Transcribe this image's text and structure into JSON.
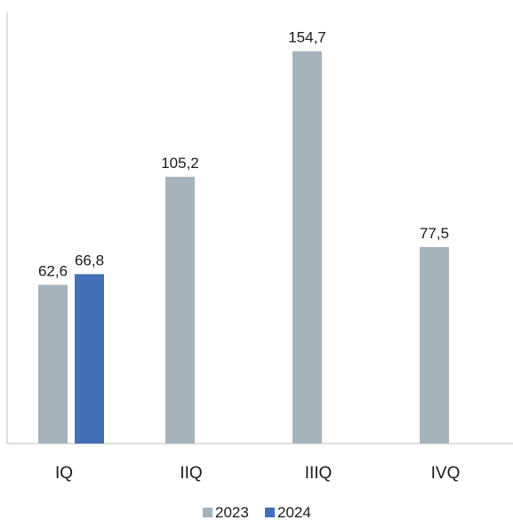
{
  "chart_data": {
    "type": "bar",
    "categories": [
      "IQ",
      "IIQ",
      "IIIQ",
      "IVQ"
    ],
    "series": [
      {
        "name": "2023",
        "color": "#a5b4bc",
        "values": [
          62.6,
          105.2,
          154.7,
          77.5
        ],
        "labels": [
          "62,6",
          "105,2",
          "154,7",
          "77,5"
        ]
      },
      {
        "name": "2024",
        "color": "#4470b8",
        "values": [
          66.8,
          null,
          null,
          null
        ],
        "labels": [
          "66,8",
          null,
          null,
          null
        ]
      }
    ],
    "ylim": [
      0,
      170
    ],
    "grid": false,
    "legend_position": "bottom",
    "title": "",
    "xlabel": "",
    "ylabel": ""
  }
}
